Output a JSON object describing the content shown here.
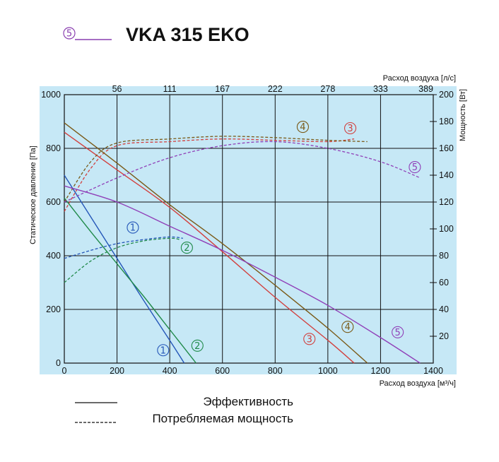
{
  "header": {
    "title": "VKA 315 EKO",
    "marker": "5",
    "marker_color": "#8a3fb0"
  },
  "legend": {
    "solid_label": "Эффективность",
    "dashed_label": "Потребляемая мощность"
  },
  "chart_data": {
    "type": "line",
    "xlabel": "Расход воздуха [м³/ч]",
    "ylabel": "Статическое давление [Па]",
    "x2label": "Расход воздуха [л/с]",
    "y2label": "Мощность [Вт]",
    "xlim": [
      0,
      1400
    ],
    "ylim": [
      0,
      1000
    ],
    "y2lim": [
      0,
      200
    ],
    "xticks": [
      "0",
      "200",
      "400",
      "600",
      "800",
      "1000",
      "1200",
      "1400"
    ],
    "yticks": [
      "0",
      "200",
      "400",
      "600",
      "800",
      "1000"
    ],
    "x2ticks": [
      {
        "label": "56",
        "x": 200
      },
      {
        "label": "111",
        "x": 400
      },
      {
        "label": "167",
        "x": 600
      },
      {
        "label": "222",
        "x": 800
      },
      {
        "label": "278",
        "x": 1000
      },
      {
        "label": "333",
        "x": 1200
      },
      {
        "label": "389",
        "x": 1400
      }
    ],
    "y2ticks": [
      "20",
      "40",
      "60",
      "80",
      "100",
      "120",
      "140",
      "160",
      "180",
      "200"
    ],
    "grid": true,
    "background": "#c6e8f6",
    "series": [
      {
        "name": "1",
        "color": "#2456b8",
        "pressure": [
          [
            0,
            700
          ],
          [
            100,
            545
          ],
          [
            200,
            390
          ],
          [
            300,
            235
          ],
          [
            400,
            85
          ],
          [
            455,
            0
          ]
        ],
        "power": [
          [
            0,
            78
          ],
          [
            100,
            84
          ],
          [
            200,
            89
          ],
          [
            300,
            92
          ],
          [
            400,
            94
          ],
          [
            450,
            93
          ]
        ],
        "label_pressure": [
          375,
          48
        ],
        "label_power": [
          260,
          101
        ]
      },
      {
        "name": "2",
        "color": "#208a4a",
        "pressure": [
          [
            0,
            615
          ],
          [
            100,
            490
          ],
          [
            200,
            370
          ],
          [
            300,
            250
          ],
          [
            400,
            125
          ],
          [
            500,
            0
          ]
        ],
        "power": [
          [
            0,
            60
          ],
          [
            100,
            76
          ],
          [
            200,
            86
          ],
          [
            300,
            91
          ],
          [
            400,
            93
          ],
          [
            440,
            92
          ]
        ],
        "label_pressure": [
          505,
          65
        ],
        "label_power": [
          465,
          86
        ]
      },
      {
        "name": "3",
        "color": "#d2403e",
        "pressure": [
          [
            0,
            860
          ],
          [
            200,
            720
          ],
          [
            400,
            580
          ],
          [
            600,
            415
          ],
          [
            800,
            245
          ],
          [
            1000,
            85
          ],
          [
            1100,
            0
          ]
        ],
        "power": [
          [
            0,
            113
          ],
          [
            100,
            145
          ],
          [
            200,
            162
          ],
          [
            400,
            165
          ],
          [
            600,
            167
          ],
          [
            800,
            166
          ],
          [
            1000,
            165
          ],
          [
            1100,
            167
          ]
        ],
        "label_pressure": [
          930,
          90
        ],
        "label_power": [
          1085,
          175
        ]
      },
      {
        "name": "4",
        "color": "#7a5a18",
        "pressure": [
          [
            0,
            895
          ],
          [
            200,
            745
          ],
          [
            400,
            590
          ],
          [
            600,
            445
          ],
          [
            800,
            290
          ],
          [
            1000,
            130
          ],
          [
            1150,
            0
          ]
        ],
        "power": [
          [
            0,
            120
          ],
          [
            100,
            150
          ],
          [
            200,
            164
          ],
          [
            400,
            167
          ],
          [
            600,
            169
          ],
          [
            800,
            168
          ],
          [
            1000,
            166
          ],
          [
            1150,
            165
          ]
        ],
        "label_pressure": [
          1075,
          135
        ],
        "label_power": [
          905,
          176
        ]
      },
      {
        "name": "5",
        "color": "#9040b8",
        "pressure": [
          [
            0,
            660
          ],
          [
            200,
            600
          ],
          [
            400,
            510
          ],
          [
            600,
            420
          ],
          [
            800,
            320
          ],
          [
            1000,
            215
          ],
          [
            1200,
            95
          ],
          [
            1350,
            0
          ]
        ],
        "power": [
          [
            0,
            120
          ],
          [
            200,
            138
          ],
          [
            400,
            153
          ],
          [
            600,
            162
          ],
          [
            800,
            165
          ],
          [
            1000,
            160
          ],
          [
            1200,
            150
          ],
          [
            1350,
            138
          ]
        ],
        "label_pressure": [
          1265,
          115
        ],
        "label_power": [
          1330,
          146
        ]
      }
    ]
  }
}
